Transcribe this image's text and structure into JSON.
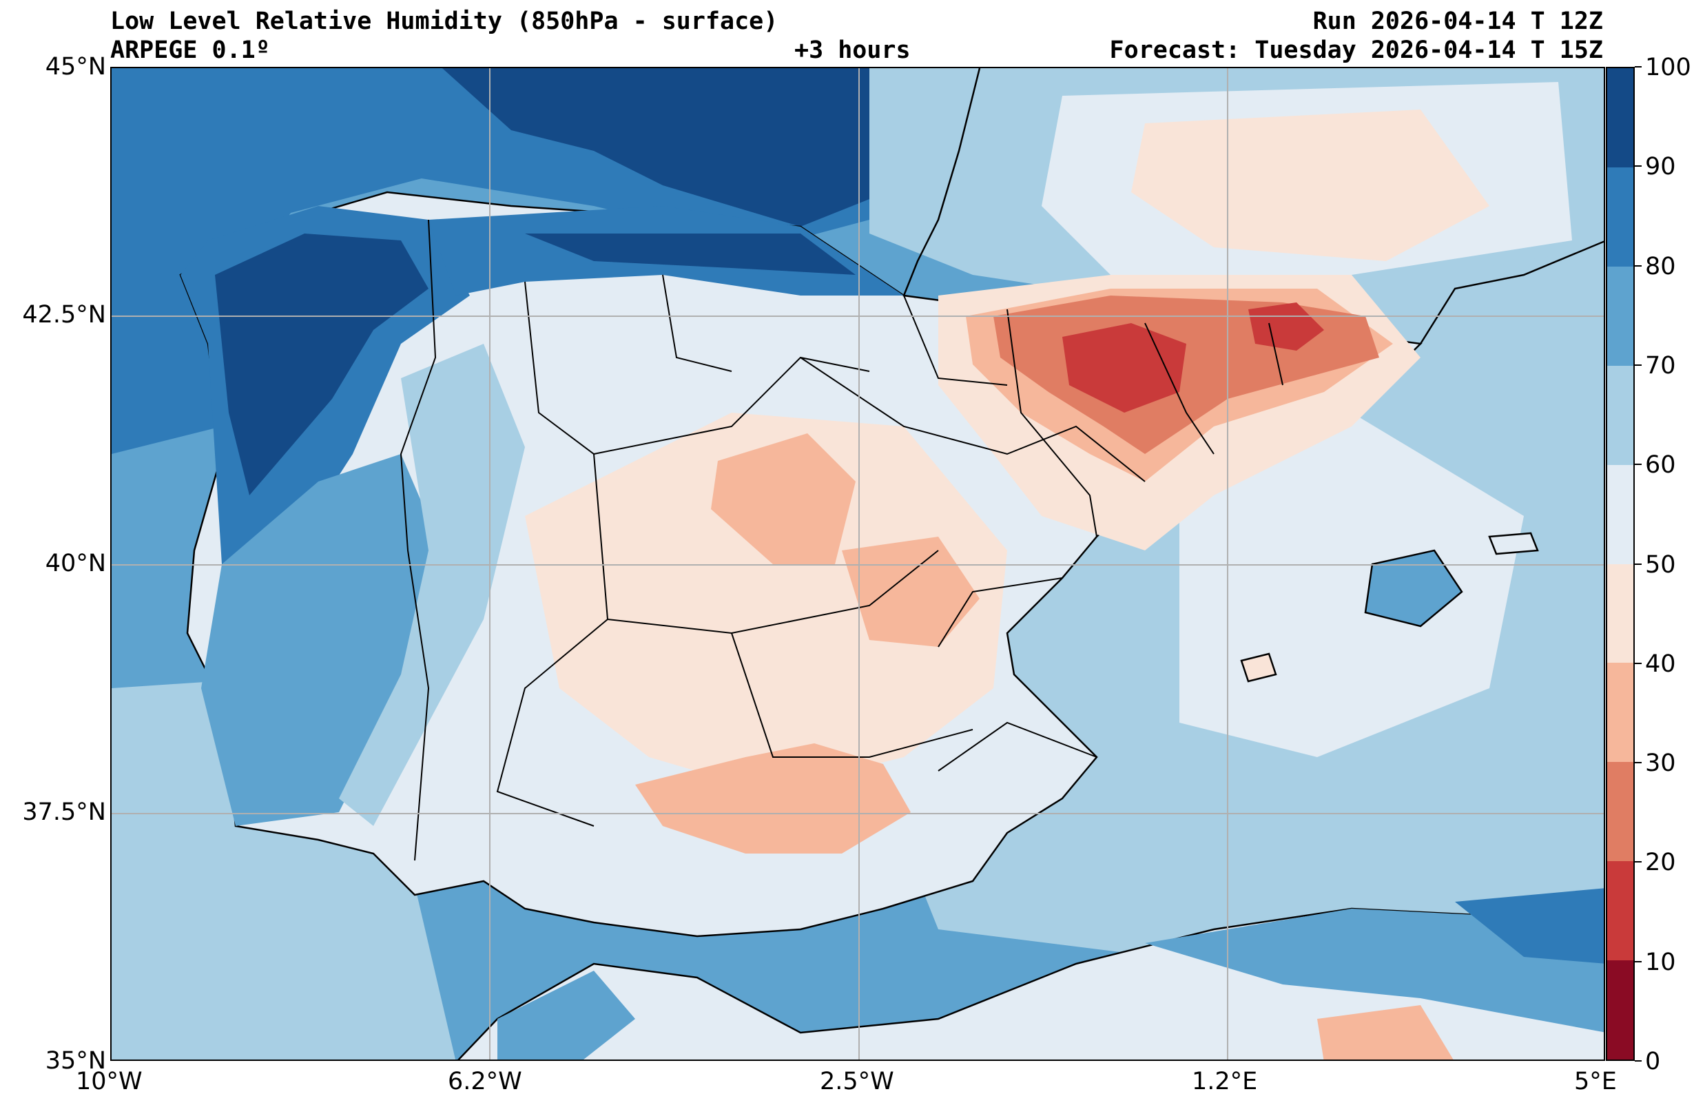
{
  "header": {
    "title": "Low Level Relative Humidity (850hPa - surface)",
    "model": "ARPEGE 0.1º",
    "lead": "+3 hours",
    "run": "Run 2026-04-14 T 12Z",
    "forecast": "Forecast: Tuesday 2026-04-14 T 15Z"
  },
  "axes": {
    "lat_labels": [
      "45°N",
      "42.5°N",
      "40°N",
      "37.5°N",
      "35°N"
    ],
    "lon_labels": [
      "10°W",
      "6.2°W",
      "2.5°W",
      "1.2°E",
      "5°E"
    ]
  },
  "colorbar": {
    "ticks": [
      "100",
      "90",
      "80",
      "70",
      "60",
      "50",
      "40",
      "30",
      "20",
      "10",
      "0"
    ],
    "levels": [
      {
        "range": "90-100",
        "color": "#144a87"
      },
      {
        "range": "80-90",
        "color": "#2f7bb8"
      },
      {
        "range": "70-80",
        "color": "#5ea3cf"
      },
      {
        "range": "60-70",
        "color": "#a8cfe4"
      },
      {
        "range": "50-60",
        "color": "#e3ecf4"
      },
      {
        "range": "40-50",
        "color": "#f9e4d8"
      },
      {
        "range": "30-40",
        "color": "#f6b79b"
      },
      {
        "range": "20-30",
        "color": "#e07d63"
      },
      {
        "range": "10-20",
        "color": "#c93a3a"
      },
      {
        "range": "0-10",
        "color": "#8a0b24"
      }
    ]
  },
  "map": {
    "extent": {
      "lon_min": -10,
      "lon_max": 5,
      "lat_min": 35,
      "lat_max": 45
    },
    "sea_color": "#5ea3cf",
    "land_color": "#e3ecf4"
  }
}
